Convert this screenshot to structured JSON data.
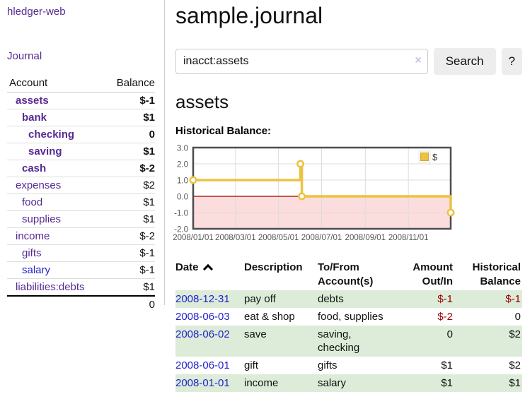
{
  "colors": {
    "purple": "#552a92",
    "link_blue": "#2323cc",
    "neg_strong": "#990000",
    "neg_soft": "#c47a77",
    "row_green": "#dcecd9",
    "button_bg": "#ededed",
    "chart_line": "#edc240",
    "chart_fill_below_zero": "#fbdddd",
    "zero_line": "#9a0000",
    "chart_border": "#4d4d4d",
    "grid": "#dddddd",
    "tick_text": "#545454"
  },
  "brand": {
    "label": "hledger-web"
  },
  "nav": {
    "journal": "Journal"
  },
  "sidebar": {
    "columns": {
      "account": "Account",
      "balance": "Balance"
    },
    "accounts": [
      {
        "name": "assets",
        "balance": "$-1",
        "level": 0,
        "bold": true,
        "balance_class": "neg-strong"
      },
      {
        "name": "bank",
        "balance": "$1",
        "level": 1,
        "bold": true,
        "balance_class": "pos"
      },
      {
        "name": "checking",
        "balance": "0",
        "level": 2,
        "bold": true,
        "balance_class": "pos"
      },
      {
        "name": "saving",
        "balance": "$1",
        "level": 2,
        "bold": true,
        "balance_class": "pos"
      },
      {
        "name": "cash",
        "balance": "$-2",
        "level": 1,
        "bold": true,
        "balance_class": "neg-strong"
      },
      {
        "name": "expenses",
        "balance": "$2",
        "level": 0,
        "bold": false,
        "balance_class": "pos"
      },
      {
        "name": "food",
        "balance": "$1",
        "level": 1,
        "bold": false,
        "balance_class": "pos"
      },
      {
        "name": "supplies",
        "balance": "$1",
        "level": 1,
        "bold": false,
        "balance_class": "pos"
      },
      {
        "name": "income",
        "balance": "$-2",
        "level": 0,
        "bold": false,
        "balance_class": "neg-soft"
      },
      {
        "name": "gifts",
        "balance": "$-1",
        "level": 1,
        "bold": false,
        "balance_class": "neg-soft"
      },
      {
        "name": "salary",
        "balance": "$-1",
        "level": 1,
        "bold": false,
        "balance_class": "neg-soft",
        "unvisited": true
      },
      {
        "name": "liabilities:debts",
        "balance": "$1",
        "level": 0,
        "bold": false,
        "balance_class": "pos"
      }
    ],
    "total": "0"
  },
  "page": {
    "title": "sample.journal",
    "account_title": "assets"
  },
  "search": {
    "value": "inacct:assets",
    "clear": "×",
    "submit": "Search",
    "help": "?"
  },
  "chart_data": {
    "type": "line",
    "title": "Historical Balance:",
    "legend": [
      {
        "label": "$",
        "color": "#edc240"
      }
    ],
    "legend_position": "top-right",
    "grid": true,
    "step": true,
    "below_zero_shaded": true,
    "xlim": [
      "2008-01-01",
      "2008-12-31"
    ],
    "ylim": [
      -2,
      3
    ],
    "x_ticks": [
      "2008/01/01",
      "2008/03/01",
      "2008/05/01",
      "2008/07/01",
      "2008/09/01",
      "2008/11/01"
    ],
    "y_ticks": [
      "3.0",
      "2.0",
      "1.0",
      "0.0",
      "-1.0",
      "-2.0"
    ],
    "series": [
      {
        "name": "$",
        "points": [
          [
            "2008-01-01",
            1
          ],
          [
            "2008-06-01",
            2
          ],
          [
            "2008-06-03",
            0
          ],
          [
            "2008-12-31",
            -1
          ]
        ]
      }
    ]
  },
  "register": {
    "columns": [
      "Date",
      "Description",
      "To/From Account(s)",
      "Amount Out/In",
      "Historical Balance"
    ],
    "rows": [
      {
        "date": "2008-12-31",
        "description": "pay off",
        "accounts": "debts",
        "amount": "$-1",
        "amount_neg": true,
        "balance": "$-1",
        "balance_neg": true
      },
      {
        "date": "2008-06-03",
        "description": "eat & shop",
        "accounts": "food, supplies",
        "amount": "$-2",
        "amount_neg": true,
        "balance": "0",
        "balance_neg": false
      },
      {
        "date": "2008-06-02",
        "description": "save",
        "accounts": "saving, checking",
        "amount": "0",
        "amount_neg": false,
        "balance": "$2",
        "balance_neg": false
      },
      {
        "date": "2008-06-01",
        "description": "gift",
        "accounts": "gifts",
        "amount": "$1",
        "amount_neg": false,
        "balance": "$2",
        "balance_neg": false
      },
      {
        "date": "2008-01-01",
        "description": "income",
        "accounts": "salary",
        "amount": "$1",
        "amount_neg": false,
        "balance": "$1",
        "balance_neg": false
      }
    ]
  }
}
